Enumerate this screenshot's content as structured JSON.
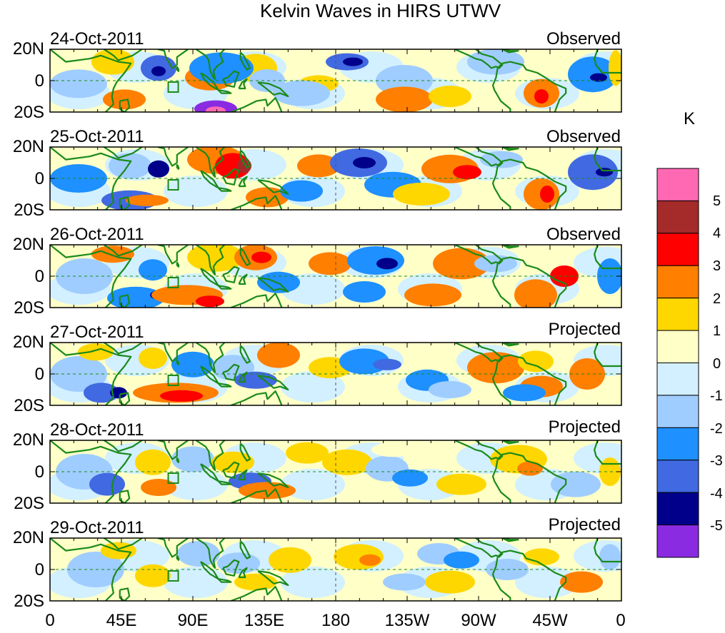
{
  "title": "Kelvin Waves in HIRS UTWV",
  "panels": [
    {
      "date": "24-Oct-2011",
      "kind": "Observed"
    },
    {
      "date": "25-Oct-2011",
      "kind": "Observed"
    },
    {
      "date": "26-Oct-2011",
      "kind": "Observed"
    },
    {
      "date": "27-Oct-2011",
      "kind": "Projected"
    },
    {
      "date": "28-Oct-2011",
      "kind": "Projected"
    },
    {
      "date": "29-Oct-2011",
      "kind": "Projected"
    }
  ],
  "y_labels": [
    "20N",
    "0",
    "20S"
  ],
  "x_labels": [
    "0",
    "45E",
    "90E",
    "135E",
    "180",
    "135W",
    "90W",
    "45W",
    "0"
  ],
  "colorbar": {
    "unit": "K",
    "labels": [
      "5",
      "4",
      "3",
      "2",
      "1",
      "0",
      "-1",
      "-2",
      "-3",
      "-4",
      "-5"
    ],
    "colors": [
      "#ff69b4",
      "#a52a2a",
      "#ff0000",
      "#ff7f00",
      "#ffd700",
      "#ffffc8",
      "#d2f0ff",
      "#a0cdff",
      "#1e90ff",
      "#4169e1",
      "#00008b",
      "#8a2be2"
    ]
  },
  "anomaly_colors": {
    "pink": "#ff69b4",
    "darkred": "#a52a2a",
    "red": "#ff0000",
    "orange": "#ff7f00",
    "yellow": "#ffd700",
    "cream": "#ffffc8",
    "pale_blue": "#d2f0ff",
    "light_blue": "#a0cdff",
    "blue": "#1e90ff",
    "royal_blue": "#4169e1",
    "navy": "#00008b",
    "purple": "#8a2be2",
    "coast": "#1a8a1a"
  }
}
